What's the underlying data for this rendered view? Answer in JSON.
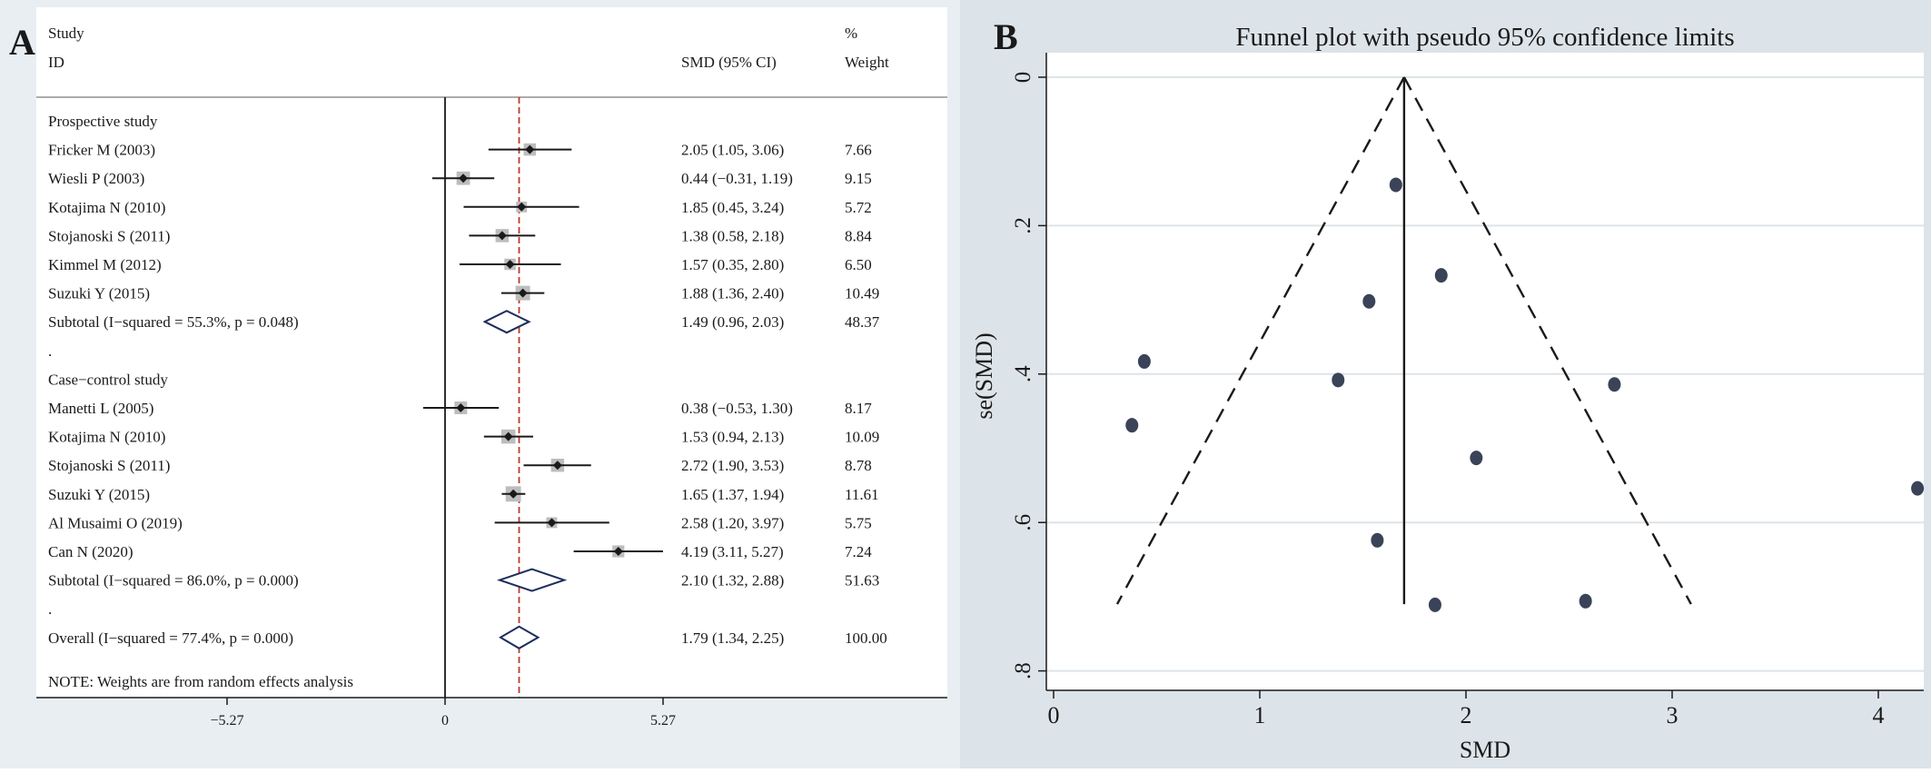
{
  "colors": {
    "panel_bg": "#e9eef2",
    "funnel_bg": "#dde4e9",
    "ink": "#1a1a1a",
    "ref_line": "#c0392b",
    "marker_box": "#bdbdbd",
    "diamond": "#1f2d5c",
    "dot": "#3a4357",
    "grid": "#dde4e9"
  },
  "chart_data": [
    {
      "type": "forest",
      "panel_label": "A",
      "headers": {
        "study_line1": "Study",
        "study_line2": "ID",
        "effect": "SMD (95% CI)",
        "weight_line1": "%",
        "weight_line2": "Weight"
      },
      "xlim": [
        -5.27,
        5.27
      ],
      "ticks": [
        {
          "value": -5.27,
          "label": "−5.27"
        },
        {
          "value": 0,
          "label": "0"
        },
        {
          "value": 5.27,
          "label": "5.27"
        }
      ],
      "overall_line": 1.79,
      "rows": [
        {
          "kind": "group",
          "label": "Prospective study"
        },
        {
          "kind": "study",
          "label": "Fricker M (2003)",
          "est": 2.05,
          "lo": 1.05,
          "hi": 3.06,
          "ci_text": "2.05 (1.05, 3.06)",
          "weight": 7.66,
          "weight_text": "7.66"
        },
        {
          "kind": "study",
          "label": "Wiesli P (2003)",
          "est": 0.44,
          "lo": -0.31,
          "hi": 1.19,
          "ci_text": "0.44 (−0.31, 1.19)",
          "weight": 9.15,
          "weight_text": "9.15"
        },
        {
          "kind": "study",
          "label": "Kotajima N (2010)",
          "est": 1.85,
          "lo": 0.45,
          "hi": 3.24,
          "ci_text": "1.85 (0.45, 3.24)",
          "weight": 5.72,
          "weight_text": "5.72"
        },
        {
          "kind": "study",
          "label": "Stojanoski S (2011)",
          "est": 1.38,
          "lo": 0.58,
          "hi": 2.18,
          "ci_text": "1.38 (0.58, 2.18)",
          "weight": 8.84,
          "weight_text": "8.84"
        },
        {
          "kind": "study",
          "label": "Kimmel M (2012)",
          "est": 1.57,
          "lo": 0.35,
          "hi": 2.8,
          "ci_text": "1.57 (0.35, 2.80)",
          "weight": 6.5,
          "weight_text": "6.50"
        },
        {
          "kind": "study",
          "label": "Suzuki Y (2015)",
          "est": 1.88,
          "lo": 1.36,
          "hi": 2.4,
          "ci_text": "1.88 (1.36, 2.40)",
          "weight": 10.49,
          "weight_text": "10.49"
        },
        {
          "kind": "subtotal",
          "label": "Subtotal  (I−squared = 55.3%, p = 0.048)",
          "est": 1.49,
          "lo": 0.96,
          "hi": 2.03,
          "ci_text": "1.49 (0.96, 2.03)",
          "weight_text": "48.37"
        },
        {
          "kind": "dot",
          "label": "."
        },
        {
          "kind": "group",
          "label": "Case−control study"
        },
        {
          "kind": "study",
          "label": "Manetti L (2005)",
          "est": 0.38,
          "lo": -0.53,
          "hi": 1.3,
          "ci_text": "0.38 (−0.53, 1.30)",
          "weight": 8.17,
          "weight_text": "8.17"
        },
        {
          "kind": "study",
          "label": "Kotajima N (2010)",
          "est": 1.53,
          "lo": 0.94,
          "hi": 2.13,
          "ci_text": "1.53 (0.94, 2.13)",
          "weight": 10.09,
          "weight_text": "10.09"
        },
        {
          "kind": "study",
          "label": "Stojanoski S (2011)",
          "est": 2.72,
          "lo": 1.9,
          "hi": 3.53,
          "ci_text": "2.72 (1.90, 3.53)",
          "weight": 8.78,
          "weight_text": "8.78"
        },
        {
          "kind": "study",
          "label": "Suzuki Y (2015)",
          "est": 1.65,
          "lo": 1.37,
          "hi": 1.94,
          "ci_text": "1.65 (1.37, 1.94)",
          "weight": 11.61,
          "weight_text": "11.61"
        },
        {
          "kind": "study",
          "label": "Al Musaimi O (2019)",
          "est": 2.58,
          "lo": 1.2,
          "hi": 3.97,
          "ci_text": "2.58 (1.20, 3.97)",
          "weight": 5.75,
          "weight_text": "5.75"
        },
        {
          "kind": "study",
          "label": "Can N (2020)",
          "est": 4.19,
          "lo": 3.11,
          "hi": 5.27,
          "ci_text": "4.19 (3.11, 5.27)",
          "weight": 7.24,
          "weight_text": "7.24"
        },
        {
          "kind": "subtotal",
          "label": "Subtotal  (I−squared = 86.0%, p = 0.000)",
          "est": 2.1,
          "lo": 1.32,
          "hi": 2.88,
          "ci_text": "2.10 (1.32, 2.88)",
          "weight_text": "51.63"
        },
        {
          "kind": "dot",
          "label": "."
        },
        {
          "kind": "overall",
          "label": "Overall  (I−squared = 77.4%, p = 0.000)",
          "est": 1.79,
          "lo": 1.34,
          "hi": 2.25,
          "ci_text": "1.79 (1.34, 2.25)",
          "weight_text": "100.00"
        }
      ],
      "note": "NOTE: Weights are from random effects analysis"
    },
    {
      "type": "scatter",
      "panel_label": "B",
      "title": "Funnel plot with pseudo 95% confidence limits",
      "xlabel": "SMD",
      "ylabel": "se(SMD)",
      "xlim": [
        0,
        4.2
      ],
      "ylim": [
        0.8,
        0
      ],
      "xticks": [
        0,
        1,
        2,
        3,
        4
      ],
      "xtick_labels": [
        "0",
        "1",
        "2",
        "3",
        "4"
      ],
      "yticks": [
        0,
        0.2,
        0.4,
        0.6,
        0.8
      ],
      "ytick_labels": [
        "0",
        ".2",
        ".4",
        ".6",
        ".8"
      ],
      "pooled_smd": 1.7,
      "funnel_se_max": 0.71,
      "points": [
        {
          "x": 1.66,
          "y": 0.145
        },
        {
          "x": 1.88,
          "y": 0.267
        },
        {
          "x": 1.53,
          "y": 0.302
        },
        {
          "x": 0.44,
          "y": 0.383
        },
        {
          "x": 1.38,
          "y": 0.408
        },
        {
          "x": 2.72,
          "y": 0.414
        },
        {
          "x": 0.38,
          "y": 0.469
        },
        {
          "x": 2.05,
          "y": 0.513
        },
        {
          "x": 4.19,
          "y": 0.554
        },
        {
          "x": 1.57,
          "y": 0.624
        },
        {
          "x": 1.85,
          "y": 0.711
        },
        {
          "x": 2.58,
          "y": 0.706
        }
      ]
    }
  ]
}
